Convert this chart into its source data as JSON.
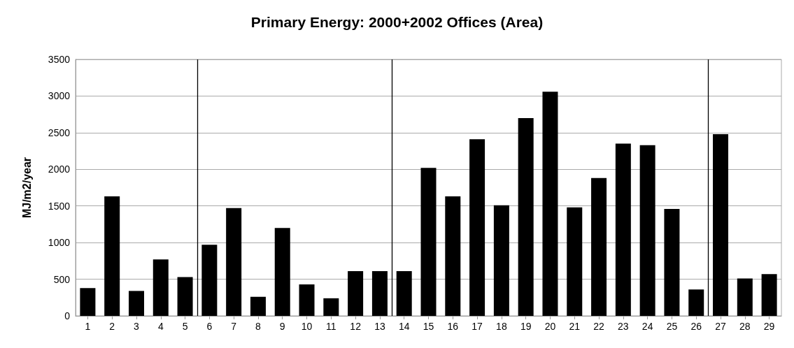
{
  "chart_data": {
    "type": "bar",
    "title": "Primary Energy: 2000+2002 Offices (Area)",
    "ylabel": "MJ/m2/year",
    "x": [
      1,
      2,
      3,
      4,
      5,
      6,
      7,
      8,
      9,
      10,
      11,
      12,
      13,
      14,
      15,
      16,
      17,
      18,
      19,
      20,
      21,
      22,
      23,
      24,
      25,
      26,
      27,
      28,
      29
    ],
    "values": [
      380,
      1630,
      340,
      770,
      530,
      970,
      1470,
      260,
      1200,
      430,
      240,
      610,
      610,
      610,
      2020,
      1630,
      2410,
      1510,
      2700,
      3060,
      1480,
      1880,
      2350,
      2330,
      1460,
      360,
      2480,
      510,
      570
    ],
    "color": "#000000",
    "xlim": [
      0.5,
      29.5
    ],
    "xticks": [
      1,
      2,
      3,
      4,
      5,
      6,
      7,
      8,
      9,
      10,
      11,
      12,
      13,
      14,
      15,
      16,
      17,
      18,
      19,
      20,
      21,
      22,
      23,
      24,
      25,
      26,
      27,
      28,
      29
    ],
    "ylim": [
      0,
      3500
    ],
    "yticks": [
      0,
      500,
      1000,
      1500,
      2000,
      2500,
      3000,
      3500
    ],
    "grid": "y",
    "ref_lines": [
      {
        "axis": "x",
        "value": 5.5,
        "color": "#000000"
      },
      {
        "axis": "x",
        "value": 13.5,
        "color": "#000000"
      },
      {
        "axis": "x",
        "value": 26.5,
        "color": "#000000"
      }
    ]
  }
}
